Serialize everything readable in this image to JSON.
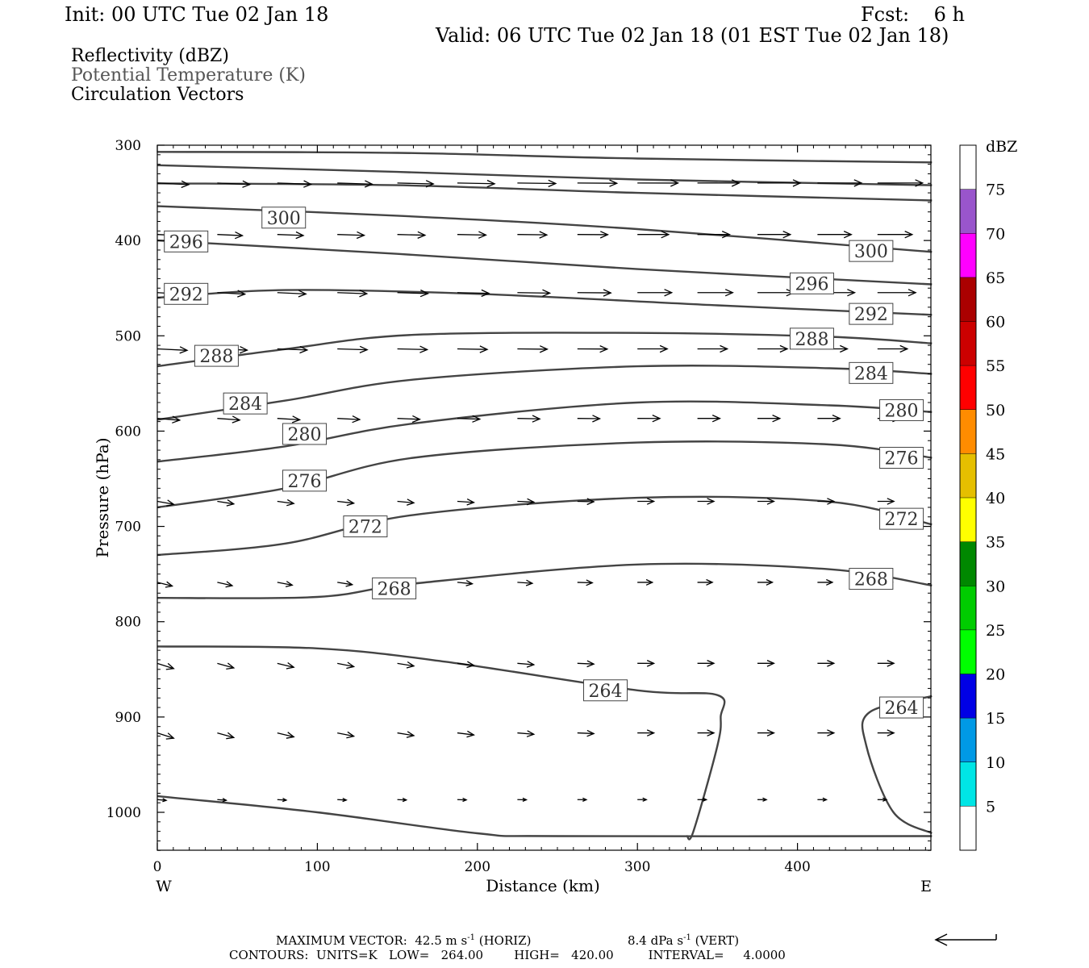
{
  "header": {
    "init": "Init: 00 UTC Tue 02 Jan 18",
    "fcst": "Fcst:    6 h",
    "valid": "Valid: 06 UTC Tue 02 Jan 18 (01 EST Tue 02 Jan 18)"
  },
  "legend": {
    "reflectivity": "Reflectivity (dBZ)",
    "theta": "Potential Temperature (K)",
    "vectors": "Circulation Vectors"
  },
  "footer": {
    "max_vector": "MAXIMUM VECTOR:  42.5 m s",
    "max_vector_exp": "-1",
    "max_vector_horiz": " (HORIZ)",
    "max_vector_vert": "8.4 dPa s",
    "max_vector_vert_exp": "-1",
    "max_vector_vert_tail": " (VERT)",
    "contours": "CONTOURS:  UNITS=K   LOW=   264.00        HIGH=   420.00         INTERVAL=     4.0000"
  },
  "colors": {
    "contour": "#444444",
    "vector": "#000000"
  },
  "chart_data": {
    "type": "contour",
    "xlabel": "Distance (km)",
    "ylabel": "Pressure (hPa)",
    "x_ticks": [
      0,
      100,
      200,
      300,
      400
    ],
    "x_end_labels": {
      "left": "W",
      "right": "E"
    },
    "y_ticks": [
      300,
      400,
      500,
      600,
      700,
      800,
      900,
      1000
    ],
    "xlim": [
      0,
      484
    ],
    "ylim": [
      300,
      1040
    ],
    "colorbar": {
      "unit": "dBZ",
      "labels": [
        5,
        10,
        15,
        20,
        25,
        30,
        35,
        40,
        45,
        50,
        55,
        60,
        65,
        70,
        75
      ],
      "colors": [
        "#ffffff",
        "#00e5e5",
        "#0099e5",
        "#0000e5",
        "#00ff00",
        "#00cc00",
        "#008800",
        "#ffff00",
        "#e5bf00",
        "#ff8c00",
        "#ff0000",
        "#cc0000",
        "#aa0000",
        "#ff00ff",
        "#9955cc",
        "#ffffff"
      ]
    },
    "isentropes": [
      {
        "pts": [
          [
            0,
            307
          ],
          [
            150,
            308
          ],
          [
            300,
            314
          ],
          [
            484,
            318
          ]
        ]
      },
      {
        "pts": [
          [
            0,
            321
          ],
          [
            150,
            328
          ],
          [
            300,
            336
          ],
          [
            484,
            342
          ]
        ]
      },
      {
        "pts": [
          [
            0,
            340
          ],
          [
            150,
            342
          ],
          [
            300,
            350
          ],
          [
            484,
            358
          ]
        ]
      },
      {
        "pts": [
          [
            0,
            364
          ],
          [
            150,
            374
          ],
          [
            300,
            388
          ],
          [
            484,
            412
          ]
        ],
        "labels": [
          {
            "v": "300",
            "x": 79,
            "y": 376
          },
          {
            "v": "300",
            "x": 446,
            "y": 411
          }
        ]
      },
      {
        "pts": [
          [
            0,
            400
          ],
          [
            150,
            414
          ],
          [
            300,
            430
          ],
          [
            484,
            446
          ]
        ],
        "labels": [
          {
            "v": "296",
            "x": 18,
            "y": 401
          },
          {
            "v": "296",
            "x": 409,
            "y": 445
          }
        ]
      },
      {
        "pts": [
          [
            0,
            460
          ],
          [
            80,
            452
          ],
          [
            200,
            456
          ],
          [
            350,
            468
          ],
          [
            484,
            478
          ]
        ],
        "labels": [
          {
            "v": "292",
            "x": 18,
            "y": 456
          },
          {
            "v": "292",
            "x": 446,
            "y": 477
          }
        ]
      },
      {
        "pts": [
          [
            0,
            532
          ],
          [
            80,
            514
          ],
          [
            160,
            499
          ],
          [
            300,
            497
          ],
          [
            420,
            501
          ],
          [
            484,
            508
          ]
        ],
        "labels": [
          {
            "v": "288",
            "x": 37,
            "y": 521
          },
          {
            "v": "288",
            "x": 409,
            "y": 503
          }
        ]
      },
      {
        "pts": [
          [
            0,
            588
          ],
          [
            80,
            568
          ],
          [
            160,
            546
          ],
          [
            300,
            532
          ],
          [
            420,
            534
          ],
          [
            484,
            540
          ]
        ],
        "labels": [
          {
            "v": "284",
            "x": 55,
            "y": 571
          },
          {
            "v": "284",
            "x": 446,
            "y": 539
          }
        ]
      },
      {
        "pts": [
          [
            0,
            632
          ],
          [
            80,
            616
          ],
          [
            160,
            592
          ],
          [
            300,
            570
          ],
          [
            420,
            573
          ],
          [
            484,
            580
          ]
        ],
        "labels": [
          {
            "v": "280",
            "x": 92,
            "y": 603
          },
          {
            "v": "280",
            "x": 465,
            "y": 578
          }
        ]
      },
      {
        "pts": [
          [
            0,
            680
          ],
          [
            80,
            660
          ],
          [
            160,
            628
          ],
          [
            300,
            612
          ],
          [
            420,
            614
          ],
          [
            484,
            628
          ]
        ],
        "labels": [
          {
            "v": "276",
            "x": 92,
            "y": 652
          },
          {
            "v": "276",
            "x": 465,
            "y": 628
          }
        ]
      },
      {
        "pts": [
          [
            0,
            730
          ],
          [
            80,
            718
          ],
          [
            160,
            688
          ],
          [
            300,
            670
          ],
          [
            420,
            674
          ],
          [
            484,
            698
          ]
        ],
        "labels": [
          {
            "v": "272",
            "x": 130,
            "y": 700
          },
          {
            "v": "272",
            "x": 465,
            "y": 692
          }
        ]
      },
      {
        "pts": [
          [
            0,
            775
          ],
          [
            100,
            774
          ],
          [
            160,
            760
          ],
          [
            300,
            740
          ],
          [
            420,
            745
          ],
          [
            484,
            762
          ]
        ],
        "labels": [
          {
            "v": "268",
            "x": 148,
            "y": 765
          },
          {
            "v": "268",
            "x": 446,
            "y": 755
          }
        ]
      },
      {
        "pts": [
          [
            0,
            826
          ],
          [
            100,
            828
          ],
          [
            180,
            842
          ],
          [
            300,
            872
          ],
          [
            350,
            877
          ],
          [
            352,
            900
          ],
          [
            350,
            930
          ],
          [
            335,
            1020
          ],
          [
            331,
            1025
          ]
        ],
        "labels": [
          {
            "v": "264",
            "x": 280,
            "y": 872
          }
        ]
      },
      {
        "pts": [
          [
            484,
            878
          ],
          [
            445,
            895
          ],
          [
            443,
            930
          ],
          [
            460,
            1000
          ],
          [
            484,
            1022
          ]
        ],
        "labels": [
          {
            "v": "264",
            "x": 465,
            "y": 890
          }
        ]
      },
      {
        "pts": [
          [
            0,
            983
          ],
          [
            100,
            1000
          ],
          [
            200,
            1022
          ],
          [
            250,
            1025
          ],
          [
            484,
            1025
          ]
        ]
      }
    ]
  }
}
